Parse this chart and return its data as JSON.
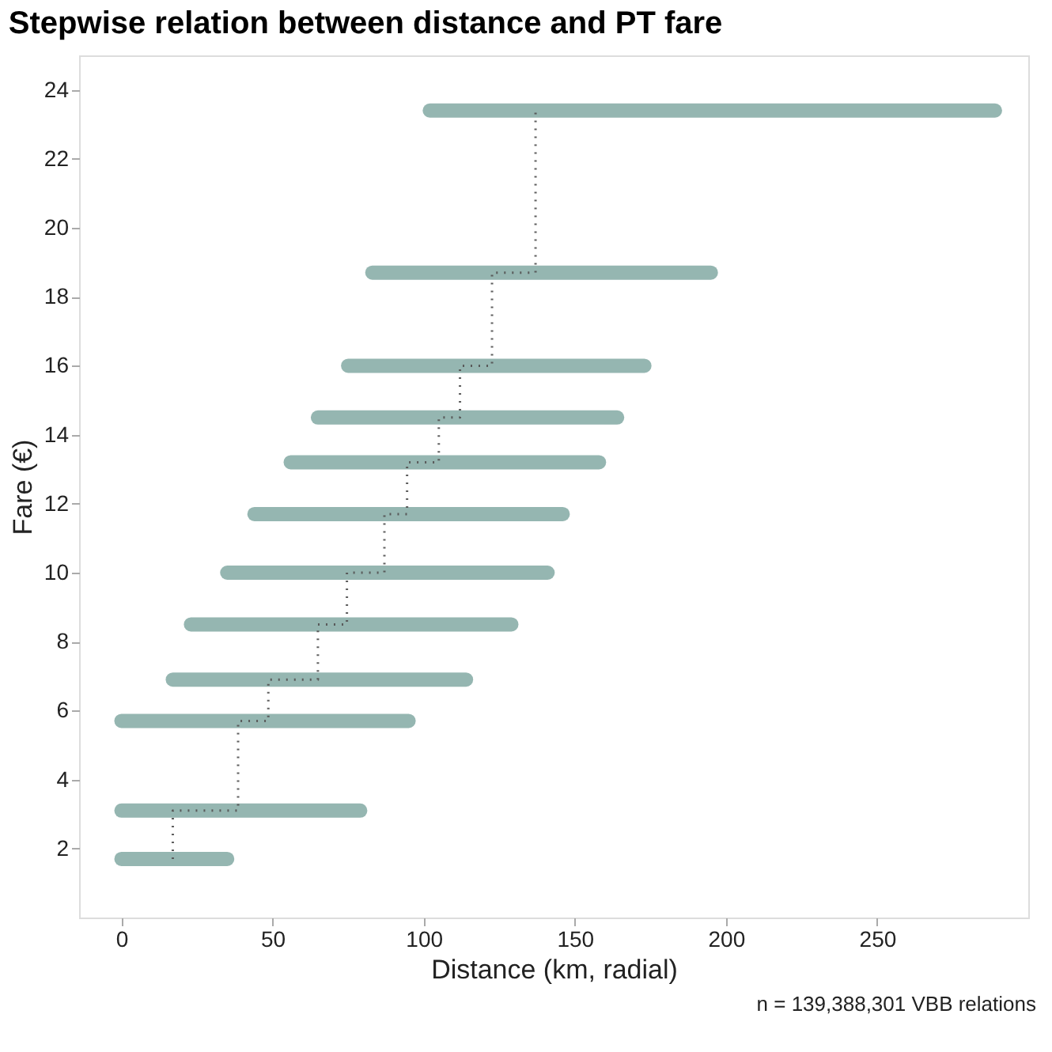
{
  "chart_data": {
    "type": "line",
    "title": "Stepwise relation between distance and PT fare",
    "xlabel": "Distance (km, radial)",
    "ylabel": "Fare (€)",
    "xlim": [
      -14,
      300
    ],
    "ylim": [
      0,
      25
    ],
    "xticks": [
      0,
      50,
      100,
      150,
      200,
      250
    ],
    "yticks": [
      2,
      4,
      6,
      8,
      10,
      12,
      14,
      16,
      18,
      20,
      22,
      24
    ],
    "grid": false,
    "annotations": [
      "n = 139,388,301 VBB relations"
    ],
    "series": [
      {
        "color": "#8fb2ad",
        "x": [
          0,
          35
        ],
        "values": [
          1.7,
          1.7
        ]
      },
      {
        "color": "#8fb2ad",
        "x": [
          0,
          79
        ],
        "values": [
          3.1,
          3.1
        ]
      },
      {
        "color": "#8fb2ad",
        "x": [
          0,
          95
        ],
        "values": [
          5.7,
          5.7
        ]
      },
      {
        "color": "#8fb2ad",
        "x": [
          17,
          114
        ],
        "values": [
          6.9,
          6.9
        ]
      },
      {
        "color": "#8fb2ad",
        "x": [
          23,
          129
        ],
        "values": [
          8.5,
          8.5
        ]
      },
      {
        "color": "#8fb2ad",
        "x": [
          35,
          141
        ],
        "values": [
          10.0,
          10.0
        ]
      },
      {
        "color": "#8fb2ad",
        "x": [
          44,
          146
        ],
        "values": [
          11.7,
          11.7
        ]
      },
      {
        "color": "#8fb2ad",
        "x": [
          56,
          158
        ],
        "values": [
          13.2,
          13.2
        ]
      },
      {
        "color": "#8fb2ad",
        "x": [
          65,
          164
        ],
        "values": [
          14.5,
          14.5
        ]
      },
      {
        "color": "#8fb2ad",
        "x": [
          75,
          173
        ],
        "values": [
          16.0,
          16.0
        ]
      },
      {
        "color": "#8fb2ad",
        "x": [
          83,
          195
        ],
        "values": [
          18.7,
          18.7
        ]
      },
      {
        "color": "#8fb2ad",
        "x": [
          102,
          289
        ],
        "values": [
          23.4,
          23.4
        ]
      },
      {
        "type": "step",
        "color": "#555555",
        "line_style": "dotted",
        "x": [
          17,
          38.6,
          48.6,
          65,
          74.6,
          87,
          94.5,
          105,
          112,
          122.6,
          137,
          137
        ],
        "values": [
          1.7,
          3.1,
          5.7,
          6.9,
          8.5,
          10.0,
          11.7,
          13.2,
          14.5,
          16.0,
          18.7,
          23.4
        ]
      }
    ]
  }
}
